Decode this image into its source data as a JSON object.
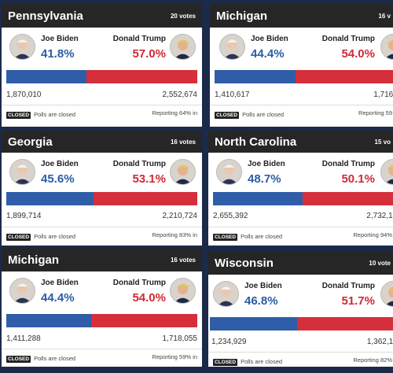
{
  "cards": [
    {
      "state": "Pennsylvania",
      "votes": "20 votes",
      "biden": {
        "name": "Joe Biden",
        "pct": "41.8%",
        "count": "1,870,010"
      },
      "trump": {
        "name": "Donald Trump",
        "pct": "57.0%",
        "count": "2,552,674"
      },
      "biden_share": 41.8,
      "closed": "CLOSED",
      "polls": "Polls are closed",
      "reporting": "Reporting 64% in"
    },
    {
      "state": "Michigan",
      "votes": "16 v",
      "biden": {
        "name": "Joe Biden",
        "pct": "44.4%",
        "count": "1,410,617"
      },
      "trump": {
        "name": "Donald Trump",
        "pct": "54.0%",
        "count": "1,716,"
      },
      "biden_share": 44.4,
      "closed": "CLOSED",
      "polls": "Polls are closed",
      "reporting": "Reporting 59"
    },
    {
      "state": "Georgia",
      "votes": "16 votes",
      "biden": {
        "name": "Joe Biden",
        "pct": "45.6%",
        "count": "1,899,714"
      },
      "trump": {
        "name": "Donald Trump",
        "pct": "53.1%",
        "count": "2,210,724"
      },
      "biden_share": 45.6,
      "closed": "CLOSED",
      "polls": "Polls are closed",
      "reporting": "Reporting 83% in"
    },
    {
      "state": "North Carolina",
      "votes": "15 vo",
      "biden": {
        "name": "Joe Biden",
        "pct": "48.7%",
        "count": "2,655,392"
      },
      "trump": {
        "name": "Donald Trump",
        "pct": "50.1%",
        "count": "2,732,1("
      },
      "biden_share": 48.7,
      "closed": "CLOSED",
      "polls": "Polls are closed",
      "reporting": "Reporting 94%"
    },
    {
      "state": "Michigan",
      "votes": "16 votes",
      "biden": {
        "name": "Joe Biden",
        "pct": "44.4%",
        "count": "1,411,288"
      },
      "trump": {
        "name": "Donald Trump",
        "pct": "54.0%",
        "count": "1,718,055"
      },
      "biden_share": 44.4,
      "closed": "CLOSED",
      "polls": "Polls are closed",
      "reporting": "Reporting 59% in"
    },
    {
      "state": "Wisconsin",
      "votes": "10 vote",
      "biden": {
        "name": "Joe Biden",
        "pct": "46.8%",
        "count": "1,234,929"
      },
      "trump": {
        "name": "Donald Trump",
        "pct": "51.7%",
        "count": "1,362,1!"
      },
      "biden_share": 46.8,
      "closed": "CLOSED",
      "polls": "Polls are closed",
      "reporting": "Reporting 82%"
    }
  ],
  "colors": {
    "biden": "#2f5da8",
    "trump": "#d52f3c",
    "header": "#262626",
    "background": "#1c2a4a"
  }
}
